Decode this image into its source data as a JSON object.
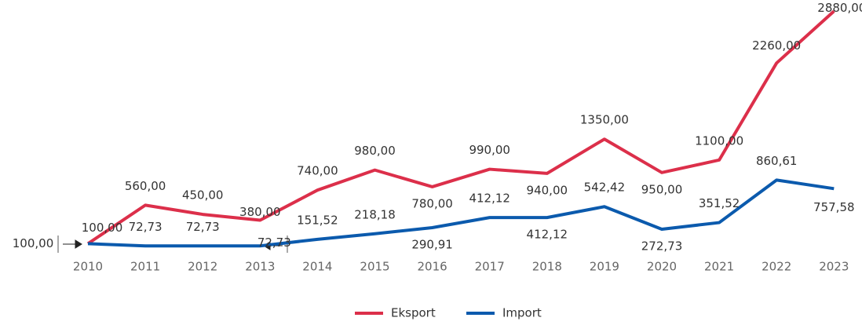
{
  "chart_data": {
    "type": "line",
    "categories": [
      "2010",
      "2011",
      "2012",
      "2013",
      "2014",
      "2015",
      "2016",
      "2017",
      "2018",
      "2019",
      "2020",
      "2021",
      "2022",
      "2023"
    ],
    "ylim": [
      0,
      3000
    ],
    "series": [
      {
        "name": "Eksport",
        "color": "#dc2f4a",
        "values": [
          100,
          560,
          450,
          380,
          740,
          980,
          780,
          990,
          940,
          1350,
          950,
          1100,
          2260,
          2880
        ],
        "value_labels": [
          "100,00",
          "560,00",
          "450,00",
          "380,00",
          "740,00",
          "980,00",
          "780,00",
          "990,00",
          "940,00",
          "1350,00",
          "950,00",
          "1100,00",
          "2260,00",
          "2880,00"
        ]
      },
      {
        "name": "Import",
        "color": "#0b5aad",
        "values": [
          100,
          72.73,
          72.73,
          72.73,
          151.52,
          218.18,
          290.91,
          412.12,
          412.12,
          542.42,
          272.73,
          351.52,
          860.61,
          757.58
        ],
        "value_labels": [
          "100,00",
          "72,73",
          "72,73",
          "72,73",
          "151,52",
          "218,18",
          "290,91",
          "412,12",
          "412,12",
          "542,42",
          "272,73",
          "351,52",
          "860,61",
          "757,58"
        ]
      }
    ]
  }
}
